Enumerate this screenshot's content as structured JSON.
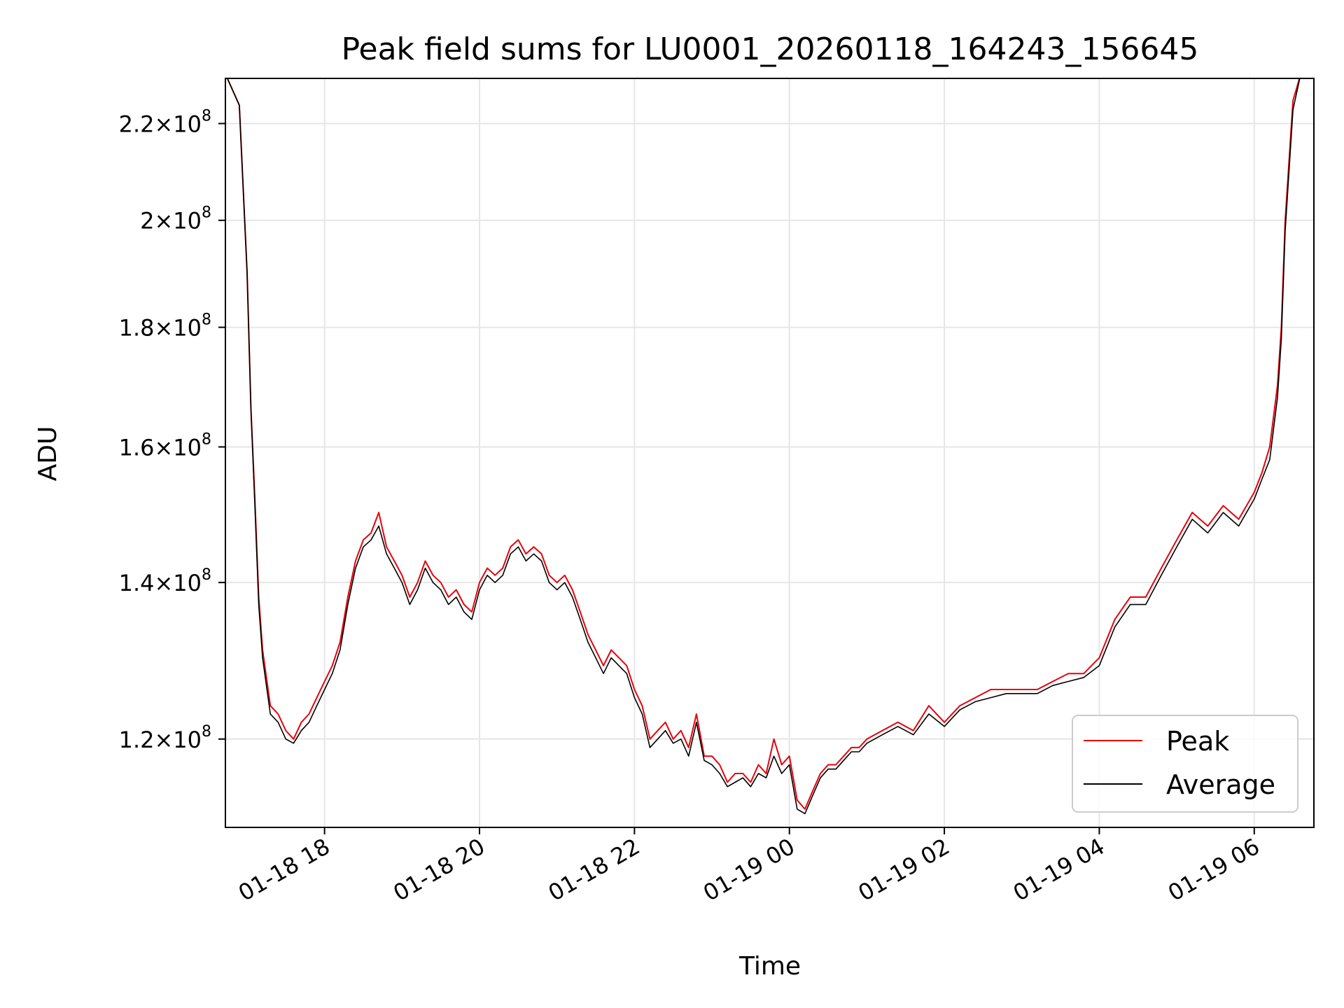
{
  "chart_data": {
    "type": "line",
    "title": "Peak field sums for LU0001_20260118_164243_156645",
    "xlabel": "Time",
    "ylabel": "ADU",
    "yscale": "log",
    "ylim": [
      110000000,
      230000000
    ],
    "xlim_hours": [
      16.72,
      30.77
    ],
    "grid": true,
    "legend_position": "lower-right",
    "x_ticks": [
      {
        "hour": 18,
        "label": "01-18 18"
      },
      {
        "hour": 20,
        "label": "01-18 20"
      },
      {
        "hour": 22,
        "label": "01-18 22"
      },
      {
        "hour": 24,
        "label": "01-19 00"
      },
      {
        "hour": 26,
        "label": "01-19 02"
      },
      {
        "hour": 28,
        "label": "01-19 04"
      },
      {
        "hour": 30,
        "label": "01-19 06"
      }
    ],
    "y_ticks": [
      {
        "value": 120000000,
        "base": "1.2",
        "exp": "8"
      },
      {
        "value": 140000000,
        "base": "1.4",
        "exp": "8"
      },
      {
        "value": 160000000,
        "base": "1.6",
        "exp": "8"
      },
      {
        "value": 180000000,
        "base": "1.8",
        "exp": "8"
      },
      {
        "value": 200000000,
        "base": "2",
        "exp": "8"
      },
      {
        "value": 220000000,
        "base": "2.2",
        "exp": "8"
      }
    ],
    "series": [
      {
        "name": "Peak",
        "color": "#e8000b",
        "x_hours": [
          16.72,
          16.9,
          17.0,
          17.05,
          17.1,
          17.15,
          17.2,
          17.3,
          17.4,
          17.5,
          17.6,
          17.7,
          17.8,
          17.9,
          18.0,
          18.1,
          18.2,
          18.3,
          18.4,
          18.5,
          18.6,
          18.7,
          18.8,
          18.9,
          19.0,
          19.1,
          19.2,
          19.3,
          19.4,
          19.5,
          19.6,
          19.7,
          19.8,
          19.9,
          20.0,
          20.1,
          20.2,
          20.3,
          20.4,
          20.5,
          20.6,
          20.7,
          20.8,
          20.9,
          21.0,
          21.1,
          21.2,
          21.3,
          21.4,
          21.5,
          21.6,
          21.7,
          21.8,
          21.9,
          22.0,
          22.1,
          22.2,
          22.3,
          22.4,
          22.5,
          22.6,
          22.7,
          22.8,
          22.9,
          23.0,
          23.1,
          23.2,
          23.3,
          23.4,
          23.5,
          23.6,
          23.7,
          23.8,
          23.9,
          24.0,
          24.1,
          24.2,
          24.3,
          24.4,
          24.5,
          24.6,
          24.7,
          24.8,
          24.9,
          25.0,
          25.2,
          25.4,
          25.6,
          25.8,
          26.0,
          26.2,
          26.4,
          26.6,
          26.8,
          27.0,
          27.2,
          27.4,
          27.6,
          27.8,
          28.0,
          28.2,
          28.4,
          28.6,
          28.8,
          29.0,
          29.2,
          29.4,
          29.6,
          29.8,
          30.0,
          30.1,
          30.2,
          30.3,
          30.35,
          30.4,
          30.5,
          30.6,
          30.77
        ],
        "values": [
          231000000,
          224000000,
          190000000,
          166000000,
          152000000,
          138000000,
          131000000,
          124000000,
          123000000,
          121000000,
          120000000,
          122000000,
          123000000,
          125000000,
          127000000,
          129000000,
          132000000,
          138000000,
          143000000,
          146000000,
          147000000,
          150000000,
          145000000,
          143000000,
          141000000,
          138000000,
          140000000,
          143000000,
          141000000,
          140000000,
          138000000,
          139000000,
          137000000,
          136000000,
          140000000,
          142000000,
          141000000,
          142000000,
          145000000,
          146000000,
          144000000,
          145000000,
          144000000,
          141000000,
          140000000,
          141000000,
          139000000,
          136000000,
          133000000,
          131000000,
          129000000,
          131000000,
          130000000,
          129000000,
          126000000,
          124000000,
          120000000,
          121000000,
          122000000,
          120000000,
          121000000,
          119000000,
          123000000,
          118000000,
          118000000,
          117000000,
          115000000,
          116000000,
          116000000,
          115000000,
          117000000,
          116000000,
          120000000,
          117000000,
          118000000,
          113000000,
          112000000,
          114000000,
          116000000,
          117000000,
          117000000,
          118000000,
          119000000,
          119000000,
          120000000,
          121000000,
          122000000,
          121000000,
          124000000,
          122000000,
          124000000,
          125000000,
          126000000,
          126000000,
          126000000,
          126000000,
          127000000,
          128000000,
          128000000,
          130000000,
          135000000,
          138000000,
          138000000,
          142000000,
          146000000,
          150000000,
          148000000,
          151000000,
          149000000,
          153000000,
          156000000,
          160000000,
          170000000,
          180000000,
          200000000,
          225000000,
          231000000,
          231000000
        ]
      },
      {
        "name": "Average",
        "color": "#000000",
        "x_hours": [
          16.72,
          16.9,
          17.0,
          17.05,
          17.1,
          17.15,
          17.2,
          17.3,
          17.4,
          17.5,
          17.6,
          17.7,
          17.8,
          17.9,
          18.0,
          18.1,
          18.2,
          18.3,
          18.4,
          18.5,
          18.6,
          18.7,
          18.8,
          18.9,
          19.0,
          19.1,
          19.2,
          19.3,
          19.4,
          19.5,
          19.6,
          19.7,
          19.8,
          19.9,
          20.0,
          20.1,
          20.2,
          20.3,
          20.4,
          20.5,
          20.6,
          20.7,
          20.8,
          20.9,
          21.0,
          21.1,
          21.2,
          21.3,
          21.4,
          21.5,
          21.6,
          21.7,
          21.8,
          21.9,
          22.0,
          22.1,
          22.2,
          22.3,
          22.4,
          22.5,
          22.6,
          22.7,
          22.8,
          22.9,
          23.0,
          23.1,
          23.2,
          23.3,
          23.4,
          23.5,
          23.6,
          23.7,
          23.8,
          23.9,
          24.0,
          24.1,
          24.2,
          24.3,
          24.4,
          24.5,
          24.6,
          24.7,
          24.8,
          24.9,
          25.0,
          25.2,
          25.4,
          25.6,
          25.8,
          26.0,
          26.2,
          26.4,
          26.6,
          26.8,
          27.0,
          27.2,
          27.4,
          27.6,
          27.8,
          28.0,
          28.2,
          28.4,
          28.6,
          28.8,
          29.0,
          29.2,
          29.4,
          29.6,
          29.8,
          30.0,
          30.1,
          30.2,
          30.3,
          30.35,
          30.4,
          30.5,
          30.6,
          30.77
        ],
        "values": [
          231000000,
          224000000,
          190000000,
          166000000,
          151000000,
          137000000,
          130000000,
          123000000,
          122000000,
          120000000,
          119500000,
          121000000,
          122000000,
          124000000,
          126000000,
          128000000,
          131000000,
          137000000,
          142000000,
          145000000,
          146000000,
          148000000,
          144000000,
          142000000,
          140000000,
          137000000,
          139000000,
          142000000,
          140000000,
          139000000,
          137000000,
          138000000,
          136000000,
          135000000,
          139000000,
          141000000,
          140000000,
          141000000,
          144000000,
          145000000,
          143000000,
          144000000,
          143000000,
          140000000,
          139000000,
          140000000,
          138000000,
          135000000,
          132000000,
          130000000,
          128000000,
          130000000,
          129000000,
          128000000,
          125000000,
          123000000,
          119000000,
          120000000,
          121000000,
          119500000,
          120000000,
          118000000,
          122000000,
          117500000,
          117000000,
          116000000,
          114500000,
          115000000,
          115500000,
          114500000,
          116000000,
          115500000,
          118000000,
          116000000,
          117000000,
          112000000,
          111500000,
          113500000,
          115500000,
          116500000,
          116500000,
          117500000,
          118500000,
          118500000,
          119500000,
          120500000,
          121500000,
          120500000,
          123000000,
          121500000,
          123500000,
          124500000,
          125000000,
          125500000,
          125500000,
          125500000,
          126500000,
          127000000,
          127500000,
          129000000,
          134000000,
          137000000,
          137000000,
          141000000,
          145000000,
          149000000,
          147000000,
          150000000,
          148000000,
          152000000,
          155000000,
          158000000,
          168000000,
          178000000,
          198000000,
          223000000,
          231000000,
          231000000
        ]
      }
    ]
  }
}
